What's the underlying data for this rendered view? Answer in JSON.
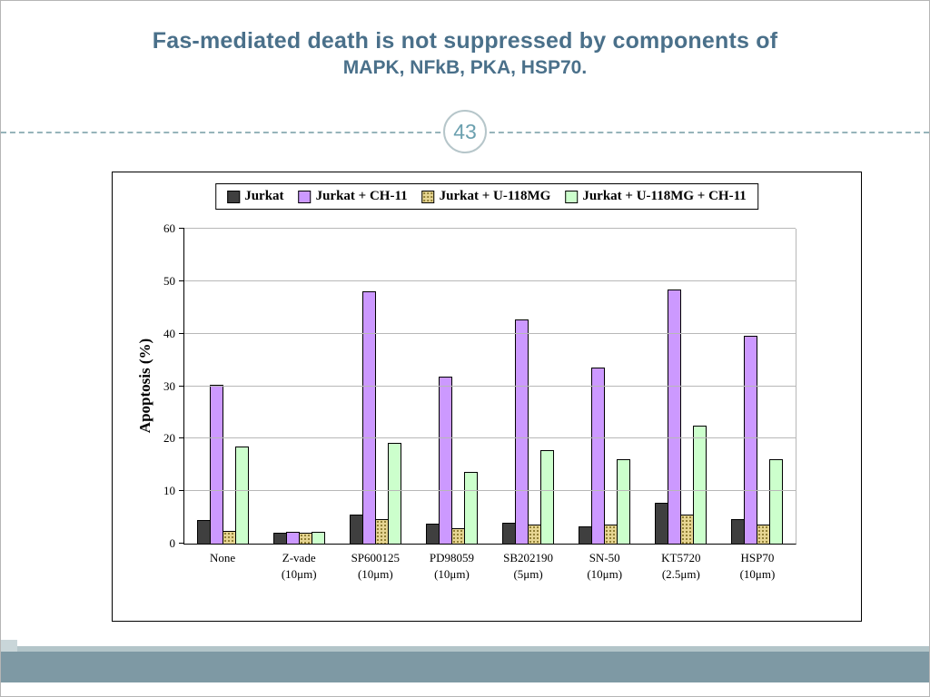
{
  "slide": {
    "title_line1": "Fas-mediated death is not suppressed by components of",
    "title_line2": "MAPK, NFkB, PKA, HSP70.",
    "page_number": "43"
  },
  "colors": {
    "title_text": "#4a708a",
    "divider": "#96b4ba",
    "footer_band": "#7e99a4",
    "footer_strip": "#b3c5c9",
    "series_jurkat": "#3f3f3f",
    "series_ch11": "#cc99ff",
    "series_u118mg": "#e6d592",
    "series_u118mg_ch11": "#ccffcc"
  },
  "chart_data": {
    "type": "bar",
    "title": "",
    "xlabel": "",
    "ylabel": "Apoptosis (%)",
    "ylim": [
      0,
      60
    ],
    "yticks": [
      0,
      10,
      20,
      30,
      40,
      50,
      60
    ],
    "grid": true,
    "legend_position": "top-center",
    "categories": [
      {
        "label": "None",
        "sublabel": ""
      },
      {
        "label": "Z-vade",
        "sublabel": "(10μm)"
      },
      {
        "label": "SP600125",
        "sublabel": "(10μm)"
      },
      {
        "label": "PD98059",
        "sublabel": "(10μm)"
      },
      {
        "label": "SB202190",
        "sublabel": "(5μm)"
      },
      {
        "label": "SN-50",
        "sublabel": "(10μm)"
      },
      {
        "label": "KT5720",
        "sublabel": "(2.5μm)"
      },
      {
        "label": "HSP70",
        "sublabel": "(10μm)"
      }
    ],
    "series": [
      {
        "name": "Jurkat",
        "color": "#3f3f3f",
        "values": [
          4.5,
          2.1,
          5.5,
          3.8,
          4.0,
          3.3,
          7.8,
          4.7
        ]
      },
      {
        "name": "Jurkat + CH-11",
        "color": "#cc99ff",
        "values": [
          30.3,
          2.3,
          48.0,
          31.8,
          42.7,
          33.6,
          48.4,
          39.6
        ]
      },
      {
        "name": "Jurkat + U-118MG",
        "color": "#e6d592",
        "pattern": "dots",
        "values": [
          2.4,
          2.0,
          4.7,
          3.0,
          3.6,
          3.6,
          5.5,
          3.6
        ]
      },
      {
        "name": "Jurkat + U-118MG + CH-11",
        "color": "#ccffcc",
        "values": [
          18.5,
          2.3,
          19.2,
          13.7,
          17.8,
          16.1,
          22.5,
          16.1
        ]
      }
    ]
  }
}
